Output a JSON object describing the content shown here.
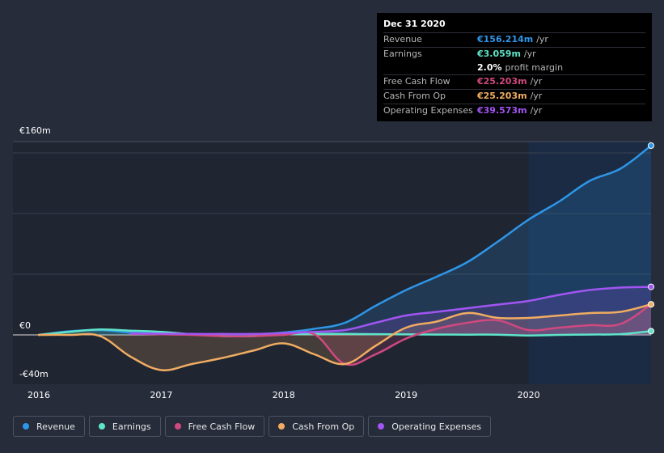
{
  "tooltip": {
    "date": "Dec 31 2020",
    "rows": [
      {
        "label": "Revenue",
        "value": "€156.214m",
        "unit": "/yr",
        "color": "#2e96e8"
      },
      {
        "label": "Earnings",
        "value": "€3.059m",
        "unit": "/yr",
        "color": "#5fe3c9"
      },
      {
        "label": "Free Cash Flow",
        "value": "€25.203m",
        "unit": "/yr",
        "color": "#d0497f"
      },
      {
        "label": "Cash From Op",
        "value": "€25.203m",
        "unit": "/yr",
        "color": "#f0ac62"
      },
      {
        "label": "Operating Expenses",
        "value": "€39.573m",
        "unit": "/yr",
        "color": "#a155f2"
      }
    ],
    "profit_margin_value": "2.0%",
    "profit_margin_label": "profit margin"
  },
  "legend": [
    {
      "label": "Revenue",
      "color": "#2e96e8"
    },
    {
      "label": "Earnings",
      "color": "#5fe3c9"
    },
    {
      "label": "Free Cash Flow",
      "color": "#d0497f"
    },
    {
      "label": "Cash From Op",
      "color": "#f0ac62"
    },
    {
      "label": "Operating Expenses",
      "color": "#a155f2"
    }
  ],
  "chart_data": {
    "type": "area",
    "ylim": [
      -40,
      160
    ],
    "xlim": [
      2016,
      2021
    ],
    "y_tick_labels": [
      "€160m",
      "€0",
      "-€40m"
    ],
    "x_tick_labels": [
      "2016",
      "2017",
      "2018",
      "2019",
      "2020"
    ],
    "highlight_range": [
      2020.0,
      2021.0
    ],
    "series": [
      {
        "name": "Revenue",
        "color": "#2e96e8",
        "x": [
          2016.0,
          2016.25,
          2016.5,
          2016.75,
          2017.0,
          2017.25,
          2017.5,
          2017.75,
          2018.0,
          2018.25,
          2018.5,
          2018.75,
          2019.0,
          2019.25,
          2019.5,
          2019.75,
          2020.0,
          2020.25,
          2020.5,
          2020.75,
          2021.0
        ],
        "values": [
          0,
          3,
          4,
          2,
          1,
          0.5,
          0.5,
          0.5,
          2,
          5,
          10,
          24,
          37,
          48,
          60,
          77,
          95,
          110,
          127,
          137,
          156
        ]
      },
      {
        "name": "Earnings",
        "color": "#5fe3c9",
        "x": [
          2016.0,
          2016.25,
          2016.5,
          2016.75,
          2017.0,
          2017.25,
          2017.5,
          2017.75,
          2018.0,
          2018.25,
          2018.5,
          2018.75,
          2019.0,
          2019.25,
          2019.5,
          2019.75,
          2020.0,
          2020.25,
          2020.5,
          2020.75,
          2021.0
        ],
        "values": [
          0,
          2.5,
          4.5,
          3.5,
          2.5,
          0.5,
          -1,
          -1,
          0.5,
          0.8,
          0.8,
          0.6,
          0.4,
          0.3,
          0.2,
          0.2,
          -0.5,
          0,
          0.3,
          0.6,
          3.1
        ]
      },
      {
        "name": "Free Cash Flow",
        "color": "#d0497f",
        "x": [
          2016.75,
          2017.0,
          2017.25,
          2017.5,
          2017.75,
          2018.0,
          2018.25,
          2018.5,
          2018.75,
          2019.0,
          2019.25,
          2019.5,
          2019.75,
          2020.0,
          2020.25,
          2020.5,
          2020.75,
          2021.0
        ],
        "values": [
          1,
          0.5,
          0,
          -1,
          -1,
          0,
          0.5,
          -24,
          -16,
          -3,
          5,
          10,
          12,
          4,
          6,
          8,
          9,
          25.2
        ]
      },
      {
        "name": "Cash From Op",
        "color": "#f0ac62",
        "x": [
          2016.0,
          2016.25,
          2016.5,
          2016.75,
          2017.0,
          2017.25,
          2017.5,
          2017.75,
          2018.0,
          2018.25,
          2018.5,
          2018.75,
          2019.0,
          2019.25,
          2019.5,
          2019.75,
          2020.0,
          2020.25,
          2020.5,
          2020.75,
          2021.0
        ],
        "values": [
          0,
          0,
          -1,
          -18,
          -29,
          -24,
          -19,
          -13,
          -7,
          -16,
          -24,
          -9,
          6,
          11,
          18,
          14,
          14,
          16,
          18,
          19,
          25.2
        ]
      },
      {
        "name": "Operating Expenses",
        "color": "#a155f2",
        "x": [
          2016.75,
          2017.0,
          2017.25,
          2017.5,
          2017.75,
          2018.0,
          2018.25,
          2018.5,
          2018.75,
          2019.0,
          2019.25,
          2019.5,
          2019.75,
          2020.0,
          2020.25,
          2020.5,
          2020.75,
          2021.0
        ],
        "values": [
          1,
          1,
          0.8,
          0.8,
          0.8,
          1.5,
          2.5,
          4,
          10,
          16,
          19,
          22,
          25,
          28,
          33,
          37,
          39,
          39.6
        ]
      }
    ]
  }
}
